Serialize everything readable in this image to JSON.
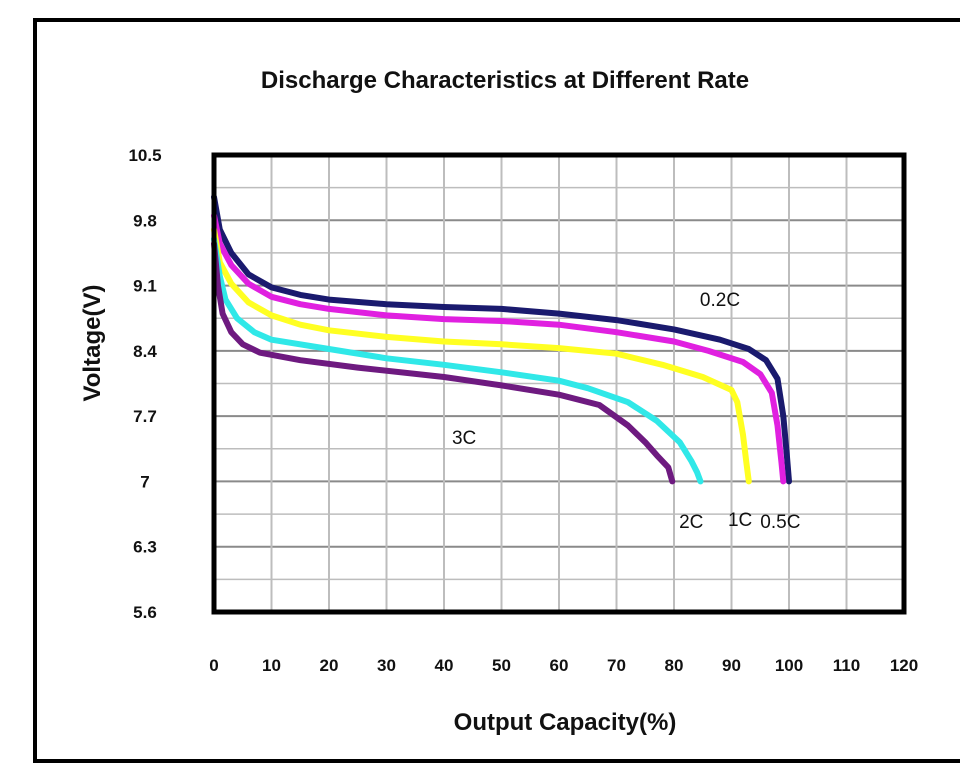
{
  "chart_data": {
    "type": "line",
    "title": "Discharge Characteristics at Different Rate",
    "xlabel": "Output Capacity(%)",
    "ylabel": "Voltage(V)",
    "xlim": [
      0,
      120
    ],
    "ylim": [
      5.6,
      10.5
    ],
    "x_ticks": [
      "0",
      "10",
      "20",
      "30",
      "40",
      "50",
      "60",
      "70",
      "80",
      "90",
      "100",
      "110",
      "120"
    ],
    "y_ticks": [
      "10.5",
      "9.8",
      "9.1",
      "8.4",
      "7.7",
      "7",
      "6.3",
      "5.6"
    ],
    "y_tick_values": [
      10.5,
      9.8,
      9.1,
      8.4,
      7.7,
      7.0,
      6.3,
      5.6
    ],
    "x_tick_values": [
      0,
      10,
      20,
      30,
      40,
      50,
      60,
      70,
      80,
      90,
      100,
      110,
      120
    ],
    "grid": true,
    "series": [
      {
        "name": "0.5C",
        "color": "#1a1a6e",
        "points": [
          [
            0,
            10.05
          ],
          [
            1,
            9.7
          ],
          [
            3,
            9.45
          ],
          [
            6,
            9.22
          ],
          [
            10,
            9.08
          ],
          [
            15,
            9.0
          ],
          [
            20,
            8.95
          ],
          [
            30,
            8.9
          ],
          [
            40,
            8.87
          ],
          [
            50,
            8.85
          ],
          [
            60,
            8.8
          ],
          [
            70,
            8.73
          ],
          [
            80,
            8.63
          ],
          [
            88,
            8.52
          ],
          [
            93,
            8.42
          ],
          [
            96,
            8.3
          ],
          [
            98,
            8.1
          ],
          [
            99,
            7.7
          ],
          [
            99.6,
            7.3
          ],
          [
            100,
            7.0
          ]
        ]
      },
      {
        "name": "0.2C",
        "color": "#e020e0",
        "points": [
          [
            0,
            9.85
          ],
          [
            1,
            9.55
          ],
          [
            3,
            9.32
          ],
          [
            6,
            9.12
          ],
          [
            10,
            8.98
          ],
          [
            15,
            8.9
          ],
          [
            20,
            8.85
          ],
          [
            30,
            8.78
          ],
          [
            40,
            8.74
          ],
          [
            50,
            8.72
          ],
          [
            60,
            8.68
          ],
          [
            70,
            8.6
          ],
          [
            80,
            8.5
          ],
          [
            86,
            8.4
          ],
          [
            92,
            8.28
          ],
          [
            95,
            8.15
          ],
          [
            97,
            7.95
          ],
          [
            98,
            7.6
          ],
          [
            98.7,
            7.2
          ],
          [
            99,
            7.0
          ]
        ]
      },
      {
        "name": "1C",
        "color": "#ffff22",
        "points": [
          [
            0,
            9.7
          ],
          [
            1,
            9.35
          ],
          [
            3,
            9.12
          ],
          [
            6,
            8.92
          ],
          [
            10,
            8.78
          ],
          [
            15,
            8.68
          ],
          [
            20,
            8.62
          ],
          [
            30,
            8.55
          ],
          [
            40,
            8.5
          ],
          [
            50,
            8.47
          ],
          [
            60,
            8.43
          ],
          [
            70,
            8.37
          ],
          [
            78,
            8.25
          ],
          [
            85,
            8.12
          ],
          [
            90,
            7.98
          ],
          [
            91,
            7.85
          ],
          [
            92,
            7.5
          ],
          [
            92.6,
            7.2
          ],
          [
            93,
            7.0
          ]
        ]
      },
      {
        "name": "2C",
        "color": "#30e8e8",
        "points": [
          [
            0,
            9.6
          ],
          [
            1,
            9.2
          ],
          [
            2,
            8.95
          ],
          [
            4,
            8.75
          ],
          [
            7,
            8.6
          ],
          [
            10,
            8.52
          ],
          [
            20,
            8.42
          ],
          [
            30,
            8.32
          ],
          [
            40,
            8.25
          ],
          [
            50,
            8.17
          ],
          [
            60,
            8.08
          ],
          [
            65,
            8.0
          ],
          [
            72,
            7.85
          ],
          [
            77,
            7.65
          ],
          [
            81,
            7.42
          ],
          [
            83,
            7.22
          ],
          [
            84,
            7.1
          ],
          [
            84.6,
            7.0
          ]
        ]
      },
      {
        "name": "3C",
        "color": "#6e1a80",
        "points": [
          [
            0,
            9.55
          ],
          [
            0.7,
            9.1
          ],
          [
            1.5,
            8.8
          ],
          [
            3,
            8.6
          ],
          [
            5,
            8.47
          ],
          [
            8,
            8.38
          ],
          [
            15,
            8.3
          ],
          [
            25,
            8.22
          ],
          [
            40,
            8.12
          ],
          [
            50,
            8.03
          ],
          [
            60,
            7.93
          ],
          [
            67,
            7.82
          ],
          [
            72,
            7.6
          ],
          [
            75,
            7.42
          ],
          [
            77,
            7.28
          ],
          [
            79,
            7.15
          ],
          [
            79.7,
            7.0
          ]
        ]
      }
    ],
    "annotations": [
      {
        "text": "0.2C",
        "x": 88,
        "y": 8.88
      },
      {
        "text": "3C",
        "x": 43.5,
        "y": 7.4
      },
      {
        "text": "2C",
        "x": 83,
        "y": 6.5
      },
      {
        "text": "1C",
        "x": 91.5,
        "y": 6.52
      },
      {
        "text": "0.5C",
        "x": 98.5,
        "y": 6.5
      }
    ]
  }
}
